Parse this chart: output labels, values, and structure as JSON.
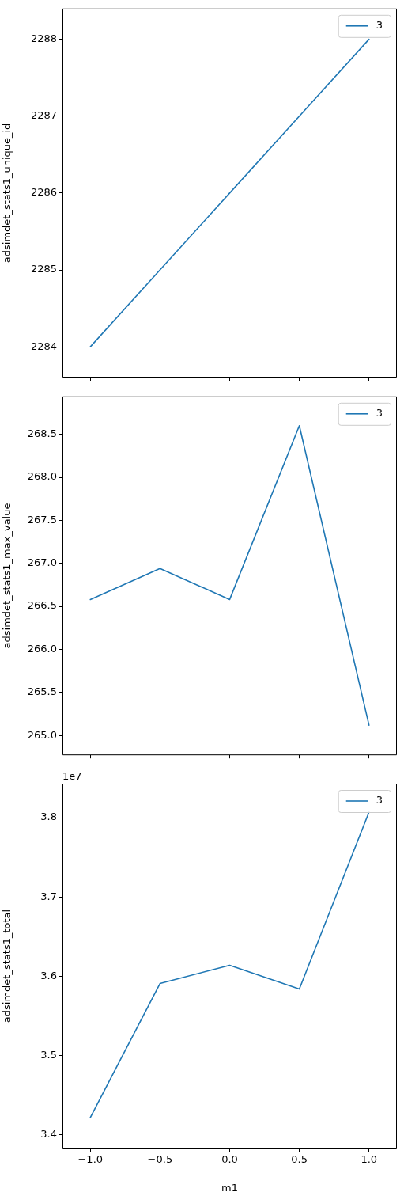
{
  "chart_data": [
    {
      "type": "line",
      "ylabel": "adsimdet_stats1_unique_id",
      "x": [
        -1,
        -0.5,
        0,
        0.5,
        1
      ],
      "xlim": [
        -1.2,
        1.2
      ],
      "xticks": [
        -1,
        -0.5,
        0,
        0.5,
        1
      ],
      "ylim": [
        2283.6,
        2288.4
      ],
      "yticks": [
        2284,
        2285,
        2286,
        2287,
        2288
      ],
      "tick_labels": "y",
      "legend": "top right",
      "marker": "none",
      "line_style": "solid",
      "series": [
        {
          "name": "3",
          "color": "#1f77b4",
          "values": [
            2284,
            2285,
            2286,
            2287,
            2288
          ]
        }
      ]
    },
    {
      "type": "line",
      "ylabel": "adsimdet_stats1_max_value",
      "x": [
        -1,
        -0.5,
        0,
        0.5,
        1
      ],
      "xlim": [
        -1.2,
        1.2
      ],
      "xticks": [
        -1,
        -0.5,
        0,
        0.5,
        1
      ],
      "ylim": [
        264.77,
        268.94
      ],
      "yticks": [
        {
          "value": 265,
          "label": "265.0"
        },
        265.5,
        {
          "value": 266,
          "label": "266.0"
        },
        266.5,
        {
          "value": 267,
          "label": "267.0"
        },
        267.5,
        {
          "value": 268,
          "label": "268.0"
        },
        268.5
      ],
      "tick_labels": "y",
      "legend": "top right",
      "marker": "none",
      "line_style": "solid",
      "series": [
        {
          "name": "3",
          "color": "#1f77b4",
          "values": [
            266.58,
            266.94,
            266.58,
            268.6,
            265.12
          ]
        }
      ]
    },
    {
      "type": "line",
      "xlabel": "m1",
      "ylabel": "adsimdet_stats1_total",
      "annotations": [
        "1e7"
      ],
      "x": [
        -1,
        -0.5,
        0,
        0.5,
        1
      ],
      "xlim": [
        -1.2,
        1.2
      ],
      "xticks": [
        {
          "value": -1,
          "label": "−1.0"
        },
        {
          "value": -0.5,
          "label": "−0.5"
        },
        {
          "value": 0,
          "label": "0.0"
        },
        {
          "value": 0.5,
          "label": "0.5"
        },
        {
          "value": 1,
          "label": "1.0"
        }
      ],
      "ylim": [
        3.383,
        3.843
      ],
      "yticks": [
        3.4,
        3.5,
        3.6,
        3.7,
        3.8
      ],
      "legend": "top right",
      "marker": "none",
      "line_style": "solid",
      "series": [
        {
          "name": "3",
          "color": "#1f77b4",
          "values": [
            3.422,
            3.591,
            3.614,
            3.584,
            3.807
          ]
        }
      ]
    }
  ]
}
